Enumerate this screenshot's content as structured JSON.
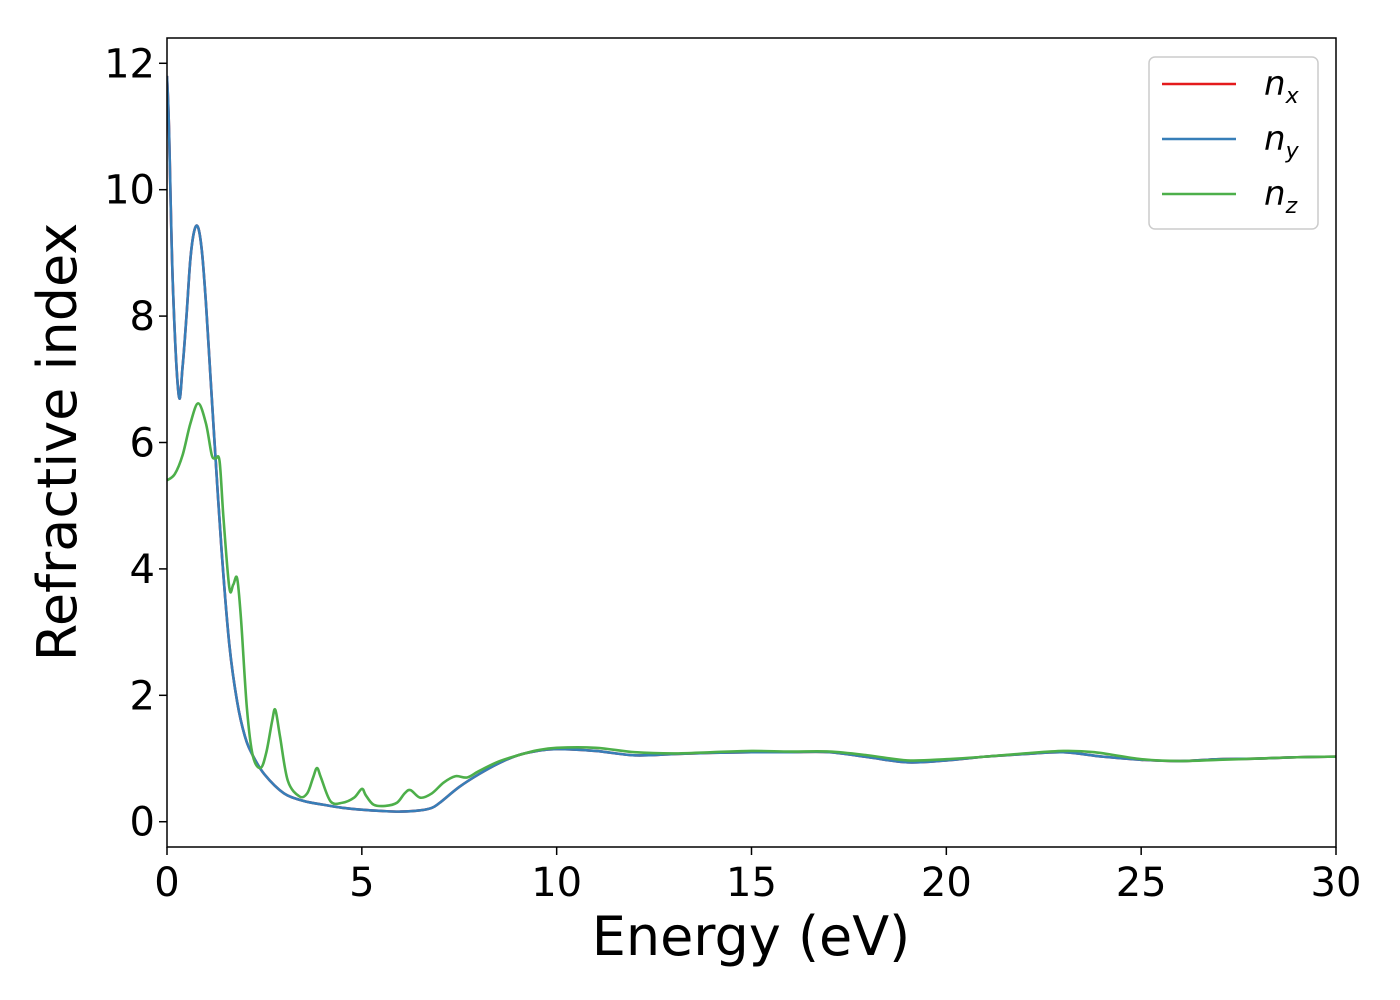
{
  "chart_data": {
    "type": "line",
    "title": "",
    "xlabel": "Energy (eV)",
    "ylabel": "Refractive index",
    "xlim": [
      0,
      30
    ],
    "ylim": [
      -0.4,
      12.4
    ],
    "xticks": [
      0,
      5,
      10,
      15,
      20,
      25,
      30
    ],
    "yticks": [
      0,
      2,
      4,
      6,
      8,
      10,
      12
    ],
    "grid": false,
    "legend_position": "top-right",
    "series": [
      {
        "name": "n",
        "subscript": "x",
        "color": "#e41a1c",
        "x": [
          0,
          0.05,
          0.15,
          0.3,
          0.4,
          0.5,
          0.6,
          0.7,
          0.8,
          0.9,
          1.0,
          1.1,
          1.2,
          1.4,
          1.6,
          1.8,
          2.0,
          2.2,
          2.5,
          3.0,
          3.5,
          4.0,
          4.5,
          5.0,
          5.5,
          6.0,
          6.5,
          6.8,
          7.0,
          7.5,
          8.0,
          8.5,
          9.0,
          9.5,
          10.0,
          11.0,
          12.0,
          13.0,
          14.0,
          15.0,
          16.0,
          17.0,
          18.0,
          19.0,
          20.0,
          21.0,
          22.0,
          23.0,
          24.0,
          25.0,
          26.0,
          27.0,
          28.0,
          29.0,
          30.0
        ],
        "y": [
          11.8,
          11.0,
          8.5,
          6.75,
          7.2,
          8.0,
          8.9,
          9.35,
          9.4,
          9.0,
          8.2,
          7.2,
          6.2,
          4.3,
          2.8,
          1.9,
          1.35,
          1.05,
          0.75,
          0.45,
          0.33,
          0.27,
          0.22,
          0.19,
          0.17,
          0.16,
          0.18,
          0.22,
          0.3,
          0.55,
          0.75,
          0.92,
          1.05,
          1.12,
          1.15,
          1.12,
          1.05,
          1.07,
          1.09,
          1.1,
          1.1,
          1.1,
          1.02,
          0.94,
          0.97,
          1.03,
          1.07,
          1.1,
          1.03,
          0.98,
          0.96,
          0.99,
          1.0,
          1.02,
          1.03
        ]
      },
      {
        "name": "n",
        "subscript": "y",
        "color": "#377eb8",
        "x": [
          0,
          0.05,
          0.15,
          0.3,
          0.4,
          0.5,
          0.6,
          0.7,
          0.8,
          0.9,
          1.0,
          1.1,
          1.2,
          1.4,
          1.6,
          1.8,
          2.0,
          2.2,
          2.5,
          3.0,
          3.5,
          4.0,
          4.5,
          5.0,
          5.5,
          6.0,
          6.5,
          6.8,
          7.0,
          7.5,
          8.0,
          8.5,
          9.0,
          9.5,
          10.0,
          11.0,
          12.0,
          13.0,
          14.0,
          15.0,
          16.0,
          17.0,
          18.0,
          19.0,
          20.0,
          21.0,
          22.0,
          23.0,
          24.0,
          25.0,
          26.0,
          27.0,
          28.0,
          29.0,
          30.0
        ],
        "y": [
          11.8,
          11.0,
          8.5,
          6.75,
          7.2,
          8.0,
          8.9,
          9.35,
          9.4,
          9.0,
          8.2,
          7.2,
          6.2,
          4.3,
          2.8,
          1.9,
          1.35,
          1.05,
          0.75,
          0.45,
          0.33,
          0.27,
          0.22,
          0.19,
          0.17,
          0.16,
          0.18,
          0.22,
          0.3,
          0.55,
          0.75,
          0.92,
          1.05,
          1.12,
          1.15,
          1.12,
          1.05,
          1.07,
          1.09,
          1.1,
          1.1,
          1.1,
          1.02,
          0.94,
          0.97,
          1.03,
          1.07,
          1.1,
          1.03,
          0.98,
          0.96,
          0.99,
          1.0,
          1.02,
          1.03
        ]
      },
      {
        "name": "n",
        "subscript": "z",
        "color": "#4daf4a",
        "x": [
          0,
          0.2,
          0.4,
          0.6,
          0.8,
          1.0,
          1.15,
          1.25,
          1.35,
          1.45,
          1.6,
          1.7,
          1.8,
          1.9,
          2.05,
          2.2,
          2.4,
          2.55,
          2.7,
          2.78,
          2.9,
          3.1,
          3.4,
          3.6,
          3.75,
          3.85,
          3.95,
          4.2,
          4.5,
          4.8,
          5.0,
          5.1,
          5.3,
          5.6,
          5.9,
          6.1,
          6.25,
          6.5,
          6.8,
          7.1,
          7.4,
          7.7,
          8.0,
          8.5,
          9.0,
          9.5,
          10.0,
          11.0,
          12.0,
          13.0,
          14.0,
          15.0,
          16.0,
          17.0,
          18.0,
          19.0,
          20.0,
          21.0,
          22.0,
          23.0,
          23.8,
          25.0,
          26.0,
          27.0,
          28.0,
          29.0,
          30.0
        ],
        "y": [
          5.4,
          5.5,
          5.8,
          6.3,
          6.62,
          6.3,
          5.8,
          5.75,
          5.7,
          4.8,
          3.7,
          3.75,
          3.85,
          3.2,
          1.8,
          1.05,
          0.85,
          1.1,
          1.6,
          1.77,
          1.35,
          0.65,
          0.4,
          0.45,
          0.7,
          0.85,
          0.7,
          0.32,
          0.3,
          0.38,
          0.52,
          0.42,
          0.27,
          0.25,
          0.3,
          0.45,
          0.5,
          0.38,
          0.45,
          0.62,
          0.72,
          0.7,
          0.8,
          0.95,
          1.05,
          1.13,
          1.17,
          1.17,
          1.1,
          1.08,
          1.1,
          1.12,
          1.11,
          1.11,
          1.05,
          0.97,
          0.99,
          1.03,
          1.08,
          1.12,
          1.1,
          0.99,
          0.96,
          0.98,
          1.0,
          1.02,
          1.03
        ]
      }
    ]
  }
}
